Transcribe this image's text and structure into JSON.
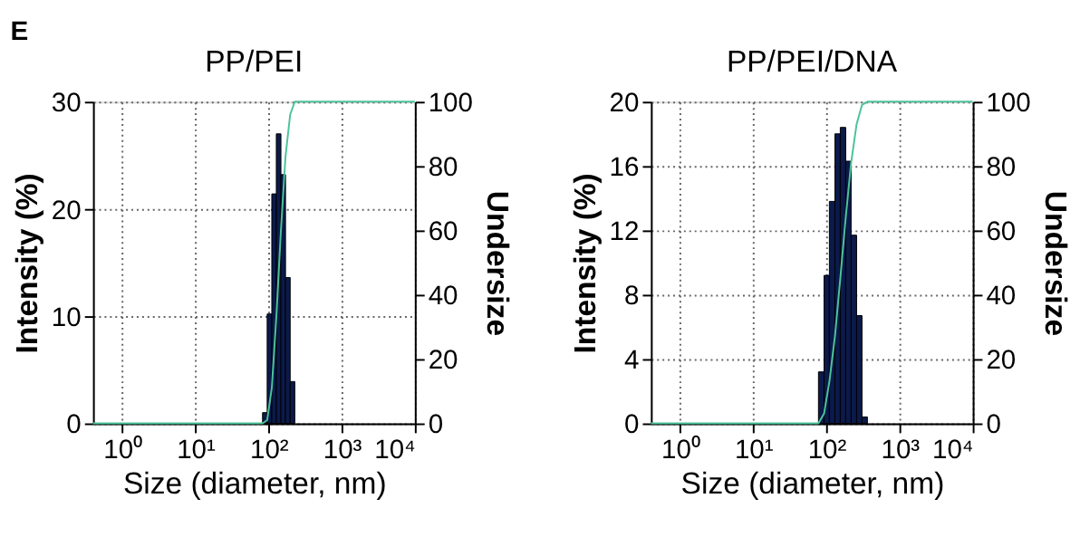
{
  "chart_data": [
    {
      "type": "histogram",
      "title": "PP/PEI",
      "xlabel": "Size (diameter, nm)",
      "ylabel": "Intensity (%)",
      "y2label": "Undersize",
      "annotations": [
        "E"
      ],
      "log": "x",
      "grid": true,
      "xlim": [
        0.4,
        10000
      ],
      "xticks": [
        {
          "value": 1,
          "label": "10⁰"
        },
        {
          "value": 10,
          "label": "10¹"
        },
        {
          "value": 100,
          "label": "10²"
        },
        {
          "value": 1000,
          "label": "10³"
        },
        {
          "value": 10000,
          "label": "10⁴"
        }
      ],
      "ylim": [
        0,
        30
      ],
      "yticks": [
        0,
        10,
        20,
        30
      ],
      "y2lim": [
        0,
        100
      ],
      "y2ticks": [
        0,
        20,
        40,
        60,
        80,
        100
      ],
      "series": [
        {
          "color": "#0b1a4a",
          "bins": [
            83,
            96,
            111,
            128,
            148,
            171,
            198,
            229
          ],
          "values": [
            1,
            10.2,
            21.4,
            27,
            23.2,
            13.6,
            3.9
          ]
        },
        {
          "type": "line",
          "axis": "y2",
          "color": "#4cc39a",
          "x": [
            0.4,
            83,
            96,
            111,
            128,
            148,
            171,
            198,
            229,
            10000
          ],
          "values": [
            0,
            0,
            1,
            11,
            33,
            60,
            83,
            96,
            100,
            100
          ]
        }
      ]
    },
    {
      "type": "histogram",
      "title": "PP/PEI/DNA",
      "xlabel": "Size (diameter, nm)",
      "ylabel": "Intensity (%)",
      "y2label": "Undersize",
      "log": "x",
      "grid": true,
      "xlim": [
        0.4,
        10000
      ],
      "xticks": [
        {
          "value": 1,
          "label": "10⁰"
        },
        {
          "value": 10,
          "label": "10¹"
        },
        {
          "value": 100,
          "label": "10²"
        },
        {
          "value": 1000,
          "label": "10³"
        },
        {
          "value": 10000,
          "label": "10⁴"
        }
      ],
      "ylim": [
        0,
        20
      ],
      "yticks": [
        0,
        4,
        8,
        12,
        16,
        20
      ],
      "y2lim": [
        0,
        100
      ],
      "y2ticks": [
        0,
        20,
        40,
        60,
        80,
        100
      ],
      "series": [
        {
          "color": "#0b1a4a",
          "bins": [
            78,
            93,
            110,
            131,
            155,
            184,
            218,
            259,
            307,
            364
          ],
          "values": [
            3.2,
            9.2,
            13.8,
            18,
            18.4,
            16.3,
            11.7,
            6.7,
            0.4
          ]
        },
        {
          "type": "line",
          "axis": "y2",
          "color": "#4cc39a",
          "x": [
            0.4,
            78,
            93,
            110,
            131,
            155,
            184,
            218,
            259,
            307,
            364,
            10000
          ],
          "values": [
            0,
            0,
            3,
            13,
            27,
            45,
            64,
            81,
            93,
            99,
            100,
            100
          ]
        }
      ]
    }
  ]
}
